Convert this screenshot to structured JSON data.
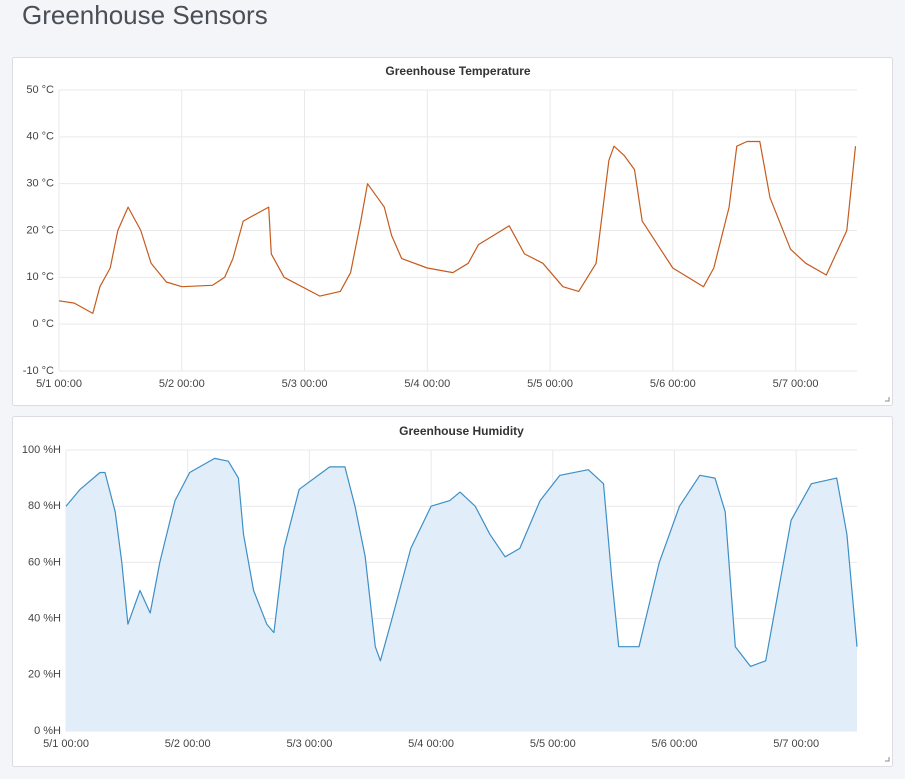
{
  "dashboard": {
    "title": "Greenhouse Sensors"
  },
  "chart_data": [
    {
      "type": "line",
      "title": "Greenhouse Temperature",
      "x": [
        0,
        3,
        6.6,
        8,
        10,
        11.5,
        13.5,
        16,
        18,
        21,
        24,
        30,
        32.4,
        34,
        36,
        41,
        41.5,
        44,
        51,
        55,
        57,
        59,
        60.3,
        63.6,
        65,
        67,
        72,
        77,
        80,
        82,
        85,
        88,
        91,
        94.6,
        98.5,
        101.6,
        105,
        107.5,
        108.5,
        110.5,
        112.5,
        114,
        117,
        120,
        126,
        128,
        131,
        132.5,
        134.5,
        137,
        139,
        143,
        146,
        150,
        154,
        155.7
      ],
      "series": [
        {
          "name": "temperature",
          "color": "#c55b1e",
          "values": [
            5,
            4.5,
            2.3,
            8,
            12,
            20,
            25,
            20,
            13,
            9,
            8,
            8.3,
            10,
            14,
            22,
            25,
            15,
            10,
            6,
            7,
            11,
            22,
            30,
            25,
            19,
            14,
            12,
            11,
            13,
            17,
            19,
            21,
            15,
            13,
            8,
            7,
            13,
            35,
            38,
            36,
            33,
            22,
            17,
            12,
            8,
            12,
            25,
            38,
            39,
            39,
            27,
            16,
            13,
            10.5,
            20,
            38
          ]
        }
      ],
      "xlim": [
        0,
        156
      ],
      "xticks": [
        {
          "value": 0,
          "label": "5/1 00:00"
        },
        {
          "value": 24,
          "label": "5/2 00:00"
        },
        {
          "value": 48,
          "label": "5/3 00:00"
        },
        {
          "value": 72,
          "label": "5/4 00:00"
        },
        {
          "value": 96,
          "label": "5/5 00:00"
        },
        {
          "value": 120,
          "label": "5/6 00:00"
        },
        {
          "value": 144,
          "label": "5/7 00:00"
        }
      ],
      "ylim": [
        -10,
        50
      ],
      "yticks": [
        {
          "value": -10,
          "label": "-10 °C"
        },
        {
          "value": 0,
          "label": "0 °C"
        },
        {
          "value": 10,
          "label": "10 °C"
        },
        {
          "value": 20,
          "label": "20 °C"
        },
        {
          "value": 30,
          "label": "30 °C"
        },
        {
          "value": 40,
          "label": "40 °C"
        },
        {
          "value": 50,
          "label": "50 °C"
        }
      ],
      "grid": true
    },
    {
      "type": "area",
      "title": "Greenhouse Humidity",
      "x": [
        0,
        2.8,
        6.7,
        7.7,
        9.7,
        11,
        12.2,
        14.6,
        16.6,
        18.5,
        21.5,
        24.4,
        29.3,
        32,
        34,
        35,
        37,
        39.6,
        41,
        43,
        46,
        52,
        55,
        57,
        59,
        61,
        62,
        64.3,
        68,
        72,
        75.7,
        77.7,
        80.7,
        83.6,
        86.6,
        89.5,
        93.5,
        97.4,
        103,
        106,
        107.6,
        109,
        113,
        117,
        121,
        125,
        128,
        130,
        132,
        135,
        138,
        140,
        143,
        147,
        152,
        154,
        156
      ],
      "series": [
        {
          "name": "humidity",
          "color": "#3d8fc6",
          "fill_color": "#e1eef9",
          "values": [
            80,
            86,
            92,
            92,
            78,
            60,
            38,
            50,
            42,
            60,
            82,
            92,
            97,
            96,
            90,
            70,
            50,
            38,
            35,
            65,
            86,
            94,
            94,
            80,
            62,
            30,
            25,
            40,
            65,
            80,
            82,
            85,
            80,
            70,
            62,
            65,
            82,
            91,
            93,
            88,
            55,
            30,
            30,
            60,
            80,
            91,
            90,
            78,
            30,
            23,
            25,
            45,
            75,
            88,
            90,
            70,
            30
          ]
        }
      ],
      "xlim": [
        0,
        156
      ],
      "xticks": [
        {
          "value": 0,
          "label": "5/1 00:00"
        },
        {
          "value": 24,
          "label": "5/2 00:00"
        },
        {
          "value": 48,
          "label": "5/3 00:00"
        },
        {
          "value": 72,
          "label": "5/4 00:00"
        },
        {
          "value": 96,
          "label": "5/5 00:00"
        },
        {
          "value": 120,
          "label": "5/6 00:00"
        },
        {
          "value": 144,
          "label": "5/7 00:00"
        }
      ],
      "ylim": [
        0,
        100
      ],
      "yticks": [
        {
          "value": 0,
          "label": "0 %H"
        },
        {
          "value": 20,
          "label": "20 %H"
        },
        {
          "value": 40,
          "label": "40 %H"
        },
        {
          "value": 60,
          "label": "60 %H"
        },
        {
          "value": 80,
          "label": "80 %H"
        },
        {
          "value": 100,
          "label": "100 %H"
        }
      ],
      "grid": true
    }
  ]
}
